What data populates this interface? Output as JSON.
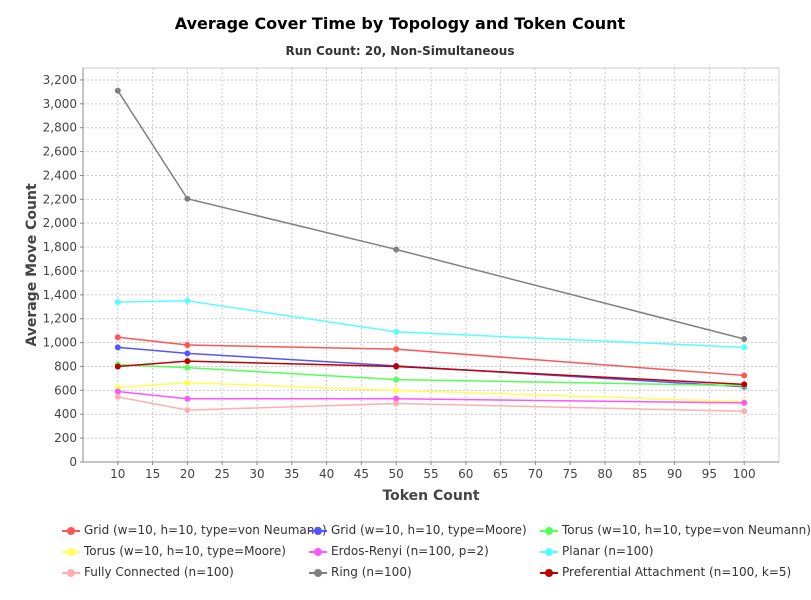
{
  "chart_data": {
    "type": "line",
    "title": "Average Cover Time by Topology and Token Count",
    "subtitle": "Run Count: 20, Non-Simultaneous",
    "xlabel": "Token Count",
    "ylabel": "Average Move Count",
    "xlim": [
      5,
      105
    ],
    "ylim": [
      0,
      3300
    ],
    "x_ticks": [
      10,
      15,
      20,
      25,
      30,
      35,
      40,
      45,
      50,
      55,
      60,
      65,
      70,
      75,
      80,
      85,
      90,
      95,
      100
    ],
    "y_ticks": [
      0,
      200,
      400,
      600,
      800,
      1000,
      1200,
      1400,
      1600,
      1800,
      2000,
      2200,
      2400,
      2600,
      2800,
      3000,
      3200
    ],
    "grid": true,
    "legend_position": "bottom",
    "x": [
      10,
      20,
      50,
      100
    ],
    "series": [
      {
        "name": "Grid (w=10, h=10, type=von Neumann)",
        "color": "#ff5555",
        "values": [
          1045,
          980,
          945,
          725
        ]
      },
      {
        "name": "Grid (w=10, h=10, type=Moore)",
        "color": "#5555ff",
        "values": [
          960,
          910,
          805,
          630
        ]
      },
      {
        "name": "Torus (w=10, h=10, type=von Neumann)",
        "color": "#55ff55",
        "values": [
          815,
          790,
          690,
          640
        ]
      },
      {
        "name": "Torus (w=10, h=10, type=Moore)",
        "color": "#ffff55",
        "values": [
          625,
          665,
          600,
          505
        ]
      },
      {
        "name": "Erdos-Renyi (n=100, p=2)",
        "color": "#ff55ff",
        "values": [
          590,
          530,
          530,
          495
        ]
      },
      {
        "name": "Planar (n=100)",
        "color": "#55ffff",
        "values": [
          1340,
          1350,
          1090,
          960
        ]
      },
      {
        "name": "Fully Connected (n=100)",
        "color": "#ffafaf",
        "values": [
          545,
          435,
          490,
          425
        ]
      },
      {
        "name": "Ring (n=100)",
        "color": "#808080",
        "values": [
          3110,
          2205,
          1780,
          1030
        ]
      },
      {
        "name": "Preferential Attachment (n=100, k=5)",
        "color": "#c00000",
        "values": [
          800,
          845,
          800,
          650
        ]
      }
    ]
  }
}
